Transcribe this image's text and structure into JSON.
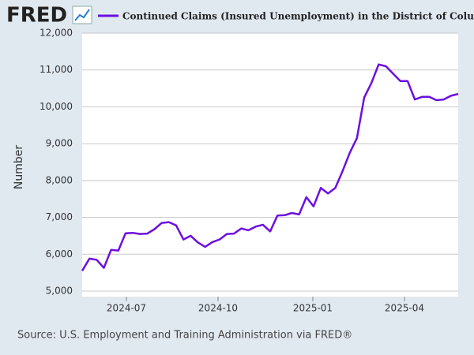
{
  "logo": "FRED",
  "chart_data": {
    "type": "line",
    "ylabel": "Number",
    "source": "Source: U.S. Employment and Training Administration via FRED®",
    "series": [
      {
        "name": "Continued Claims (Insured Unemployment) in the District of Columbia",
        "color": "#6c0fe0",
        "values": [
          5550,
          5880,
          5850,
          5630,
          6120,
          6100,
          6570,
          6580,
          6550,
          6560,
          6680,
          6850,
          6870,
          6780,
          6400,
          6500,
          6320,
          6200,
          6330,
          6400,
          6550,
          6560,
          6700,
          6650,
          6750,
          6800,
          6620,
          7050,
          7060,
          7120,
          7080,
          7550,
          7300,
          7800,
          7650,
          7800,
          8250,
          8750,
          9150,
          10250,
          10650,
          11150,
          11100,
          10900,
          10700,
          10700,
          10200,
          10270,
          10270,
          10180,
          10200,
          10300,
          10350
        ]
      }
    ],
    "xticks": [
      "2024-07",
      "2024-10",
      "2025-01",
      "2025-04"
    ],
    "ylim": [
      4850,
      12000
    ],
    "yticks": [
      {
        "value": 5000,
        "label": "5,000"
      },
      {
        "value": 6000,
        "label": "6,000"
      },
      {
        "value": 7000,
        "label": "7,000"
      },
      {
        "value": 8000,
        "label": "8,000"
      },
      {
        "value": 9000,
        "label": "9,000"
      },
      {
        "value": 10000,
        "label": "10,000"
      },
      {
        "value": 11000,
        "label": "11,000"
      },
      {
        "value": 12000,
        "label": "12,000"
      }
    ],
    "grid": true
  }
}
